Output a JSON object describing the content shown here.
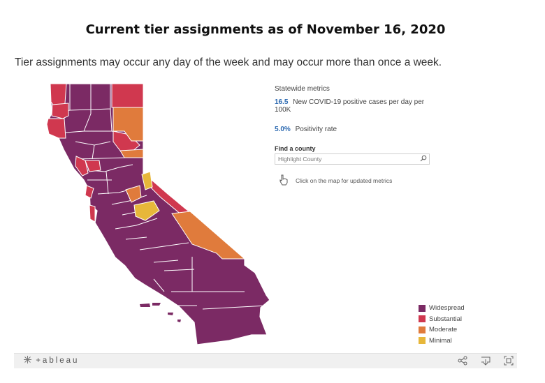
{
  "title": "Current tier assignments as of November 16, 2020",
  "subtitle": "Tier assignments may occur any day of the week and may occur more than once a week.",
  "metrics": {
    "heading": "Statewide metrics",
    "items": [
      {
        "value": "16.5",
        "label": "New COVID-19 positive cases per day per 100K"
      },
      {
        "value": "5.0%",
        "label": "Positivity rate"
      }
    ]
  },
  "search": {
    "label": "Find a county",
    "placeholder": "Highlight County"
  },
  "click_note": "Click on the map for updated metrics",
  "legend": [
    {
      "label": "Widespread",
      "color": "#7b2a64"
    },
    {
      "label": "Substantial",
      "color": "#d0384f"
    },
    {
      "label": "Moderate",
      "color": "#e07b3c"
    },
    {
      "label": "Minimal",
      "color": "#e7b73a"
    }
  ],
  "toolbar": {
    "brand": "+ableau",
    "icons": [
      "tableau-logo-icon",
      "share-icon",
      "download-icon",
      "fullscreen-icon"
    ]
  }
}
